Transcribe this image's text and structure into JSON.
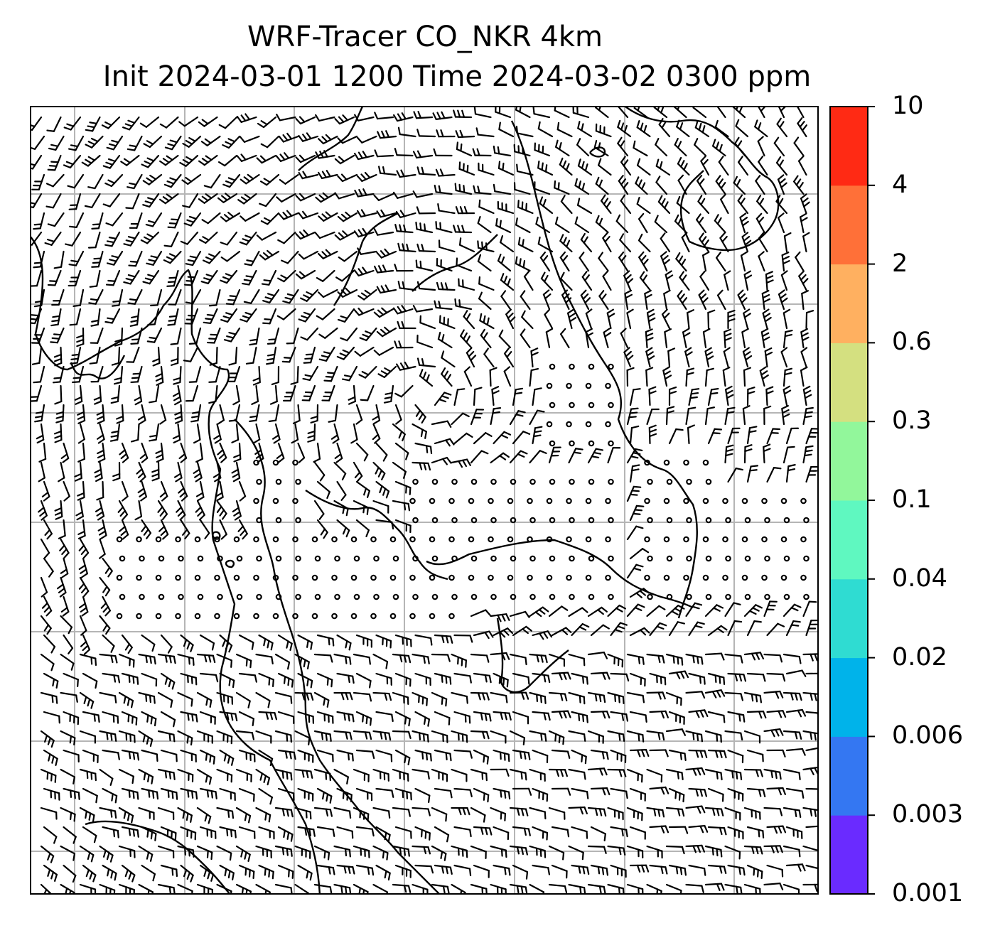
{
  "title": {
    "line1": "WRF-Tracer CO_NKR 4km",
    "line2": "Init 2024-03-01 1200 Time 2024-03-02 0300 ppm"
  },
  "colorbar": {
    "levels": [
      "0.001",
      "0.003",
      "0.006",
      "0.02",
      "0.04",
      "0.1",
      "0.3",
      "0.6",
      "2",
      "4",
      "10"
    ],
    "colors": [
      "#6a2bff",
      "#3477f2",
      "#00b3ea",
      "#2fdcd2",
      "#5ff8c0",
      "#92f79b",
      "#d4e080",
      "#ffb060",
      "#ff7038",
      "#ff2a14"
    ]
  },
  "map": {
    "background": "#ffffff",
    "gridlines": true,
    "coastlines": true,
    "wind_barbs": true
  }
}
